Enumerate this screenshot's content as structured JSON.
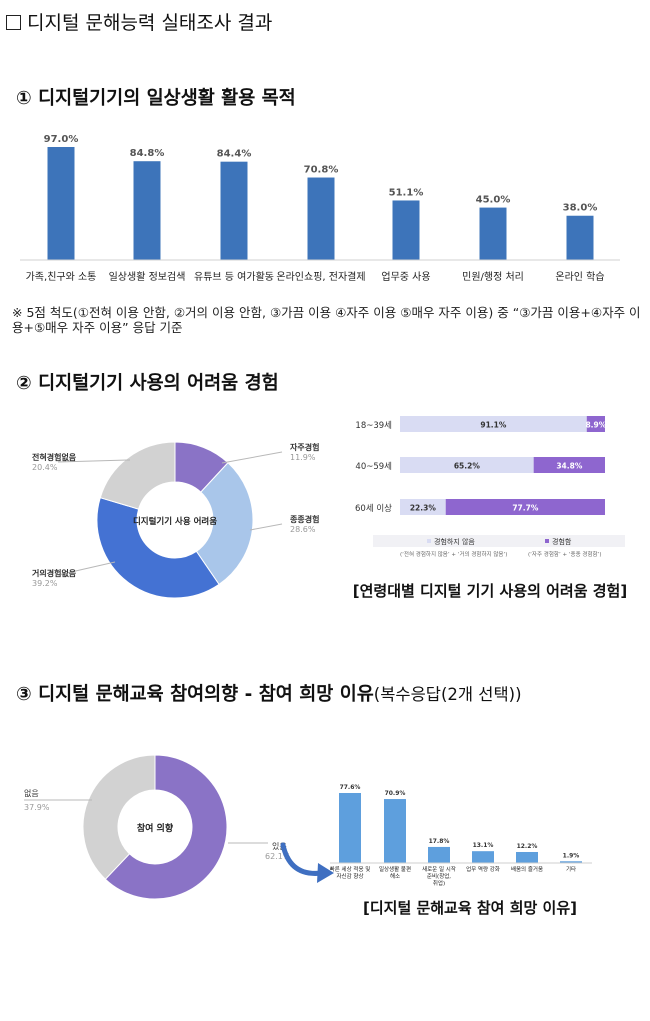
{
  "page_title": "디지털 문해능력 실태조사 결과",
  "sections": [
    {
      "title": "① 디지털기기의 일상생활 활용 목적"
    },
    {
      "title": "② 디지털기기 사용의 어려움 경험"
    },
    {
      "title": "③ 디지털 문해교육 참여의향 - 참여 희망 이유",
      "title_paren": "(복수응답(2개 선택))"
    }
  ],
  "note": "※ 5점 척도(①전혀 이용 안함, ②거의 이용 안함, ③가끔 이용 ④자주 이용 ⑤매우 자주 이용) 중 “③가끔 이용+④자주 이용+⑤매우 자주 이용” 응답 기준",
  "captions": {
    "age_chart": "[연령대별 디지털 기기 사용의 어려움 경험]",
    "reason_chart": "[디지털 문해교육 참여 희망 이유]"
  },
  "colors": {
    "bar_blue": "#3D74BA",
    "donut_purple": "#8A73C6",
    "donut_light_blue": "#A9C6EA",
    "donut_blue": "#4472D3",
    "donut_gray": "#D2D2D2",
    "stack_light": "#D9DCF3",
    "stack_purple": "#8E66CF",
    "reason_bar": "#5E9FDD",
    "arrow_blue": "#3F6FC1"
  },
  "chart_data": [
    {
      "type": "bar",
      "categories": [
        "가족,친구와 소통",
        "일상생활 정보검색",
        "유튜브 등 여가활동",
        "온라인쇼핑, 전자결제",
        "업무중 사용",
        "민원/행정 처리",
        "온라인 학습"
      ],
      "values": [
        97.0,
        84.8,
        84.4,
        70.8,
        51.1,
        45.0,
        38.0
      ],
      "value_labels": [
        "97.0%",
        "84.8%",
        "84.4%",
        "70.8%",
        "51.1%",
        "45.0%",
        "38.0%"
      ],
      "ylim": [
        0,
        100
      ]
    },
    {
      "type": "pie",
      "center_label": "디지털기기 사용 어려움",
      "labels": [
        "자주경험",
        "종종경험",
        "거의경험없음",
        "전혀경험없음"
      ],
      "values": [
        11.9,
        28.6,
        39.2,
        20.4
      ],
      "value_labels": [
        "11.9%",
        "28.6%",
        "39.2%",
        "20.4%"
      ]
    },
    {
      "type": "bar",
      "orientation": "horizontal",
      "stacked": true,
      "categories": [
        "18~39세",
        "40~59세",
        "60세 이상"
      ],
      "series": [
        {
          "name": "경험하지 않음",
          "values": [
            91.1,
            65.2,
            22.3
          ],
          "labels": [
            "91.1%",
            "65.2%",
            "22.3%"
          ]
        },
        {
          "name": "경험함",
          "values": [
            8.9,
            34.8,
            77.7
          ],
          "labels": [
            "8.9%",
            "34.8%",
            "77.7%"
          ]
        }
      ],
      "legend_notes": [
        "(‘전혀 경험하지 않음’ + ‘거의 경험하지 않음’)",
        "(‘자주 경험함’ + ‘종종 경험함’)"
      ],
      "legend_position": "bottom"
    },
    {
      "type": "pie",
      "center_label": "참여 의향",
      "labels": [
        "있음",
        "없음"
      ],
      "values": [
        62.1,
        37.9
      ],
      "value_labels": [
        "62.1%",
        "37.9%"
      ]
    },
    {
      "type": "bar",
      "categories": [
        [
          "빠른 세상 적응 및",
          "자신감 향상"
        ],
        [
          "일상생활 불편",
          "해소"
        ],
        [
          "새로운 일 시작",
          "준비(창업,",
          "취업)"
        ],
        [
          "업무 역량 강화"
        ],
        [
          "배움의 즐거움"
        ],
        [
          "기타"
        ]
      ],
      "values": [
        77.6,
        70.9,
        17.8,
        13.1,
        12.2,
        1.9
      ],
      "value_labels": [
        "77.6%",
        "70.9%",
        "17.8%",
        "13.1%",
        "12.2%",
        "1.9%"
      ],
      "ylim": [
        0,
        100
      ]
    }
  ]
}
